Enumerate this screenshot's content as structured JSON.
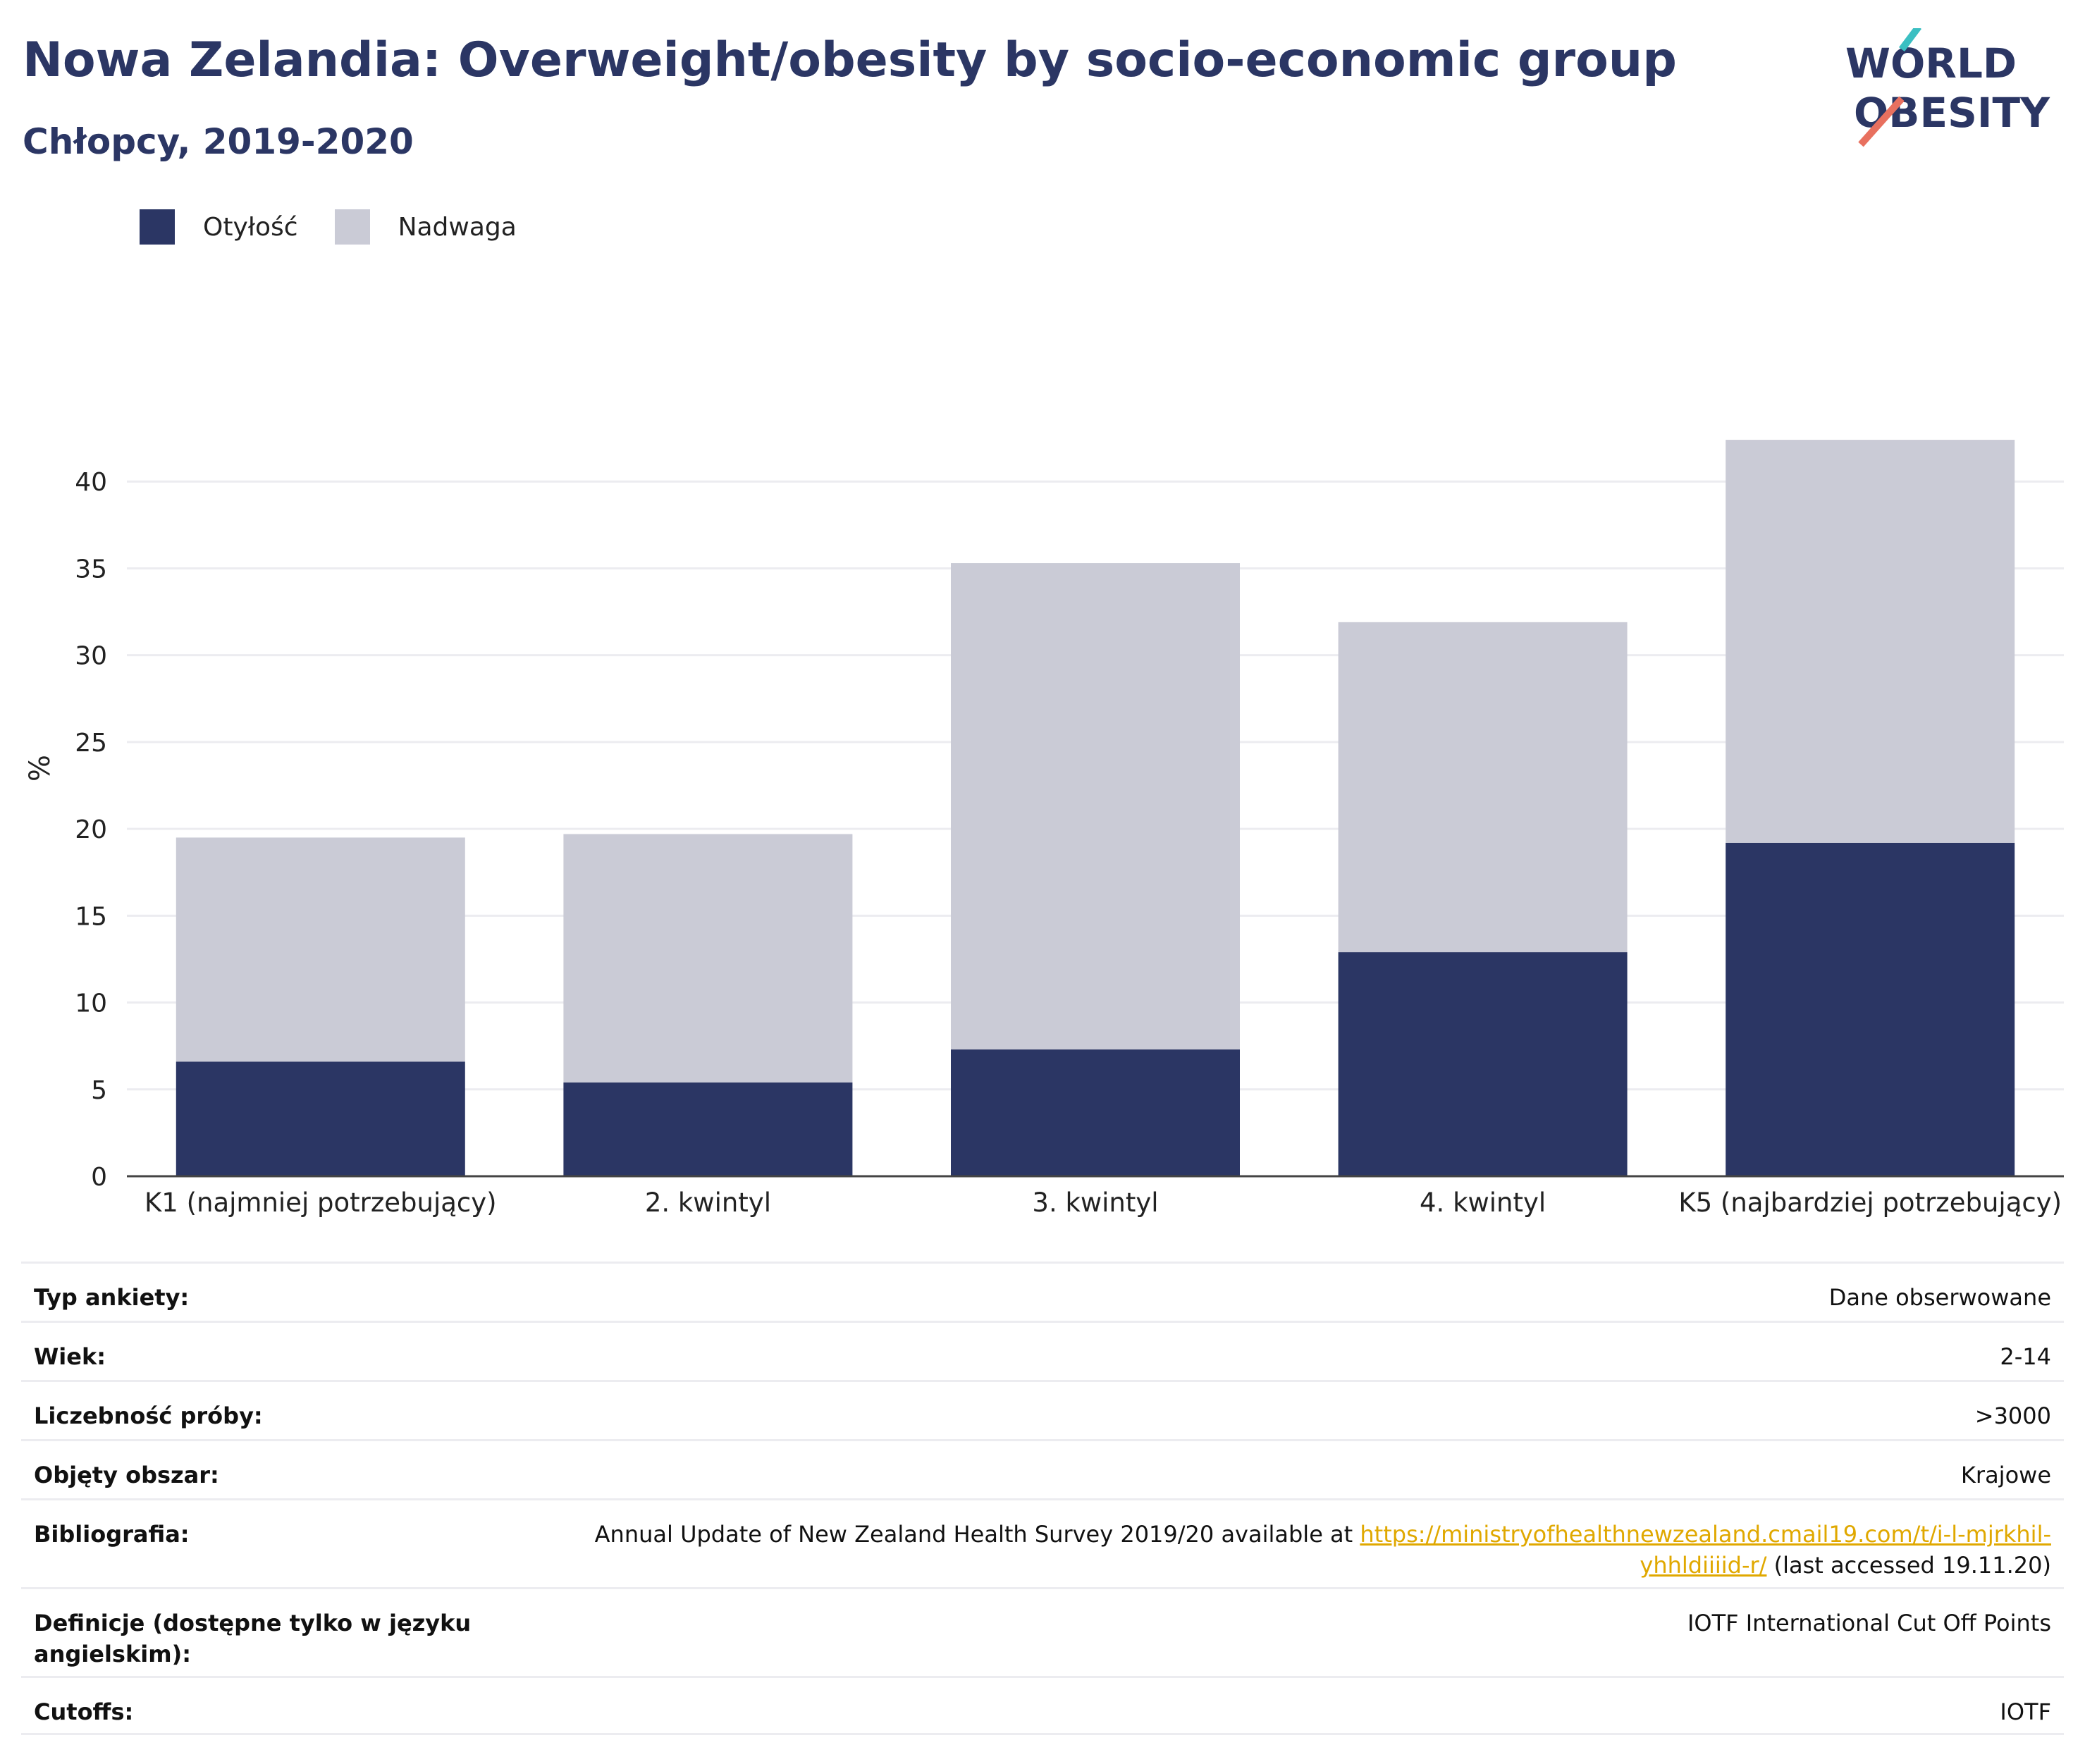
{
  "header": {
    "title": "Nowa Zelandia: Overweight/obesity by socio-economic group",
    "subtitle": "Chłopcy, 2019-2020"
  },
  "logo": {
    "line1": "WORLD",
    "line2": "OBESITY",
    "icon": "world-obesity-logo"
  },
  "legend": [
    {
      "label": "Otyłość",
      "color": "#2b3664"
    },
    {
      "label": "Nadwaga",
      "color": "#cacbd6"
    }
  ],
  "chart_data": {
    "type": "bar",
    "stacked": true,
    "categories": [
      "K1 (najmniej potrzebujący)",
      "2. kwintyl",
      "3. kwintyl",
      "4. kwintyl",
      "K5 (najbardziej potrzebujący)"
    ],
    "series": [
      {
        "name": "Otyłość",
        "color": "#2b3664",
        "values": [
          6.6,
          5.4,
          7.3,
          12.9,
          19.2
        ]
      },
      {
        "name": "Nadwaga",
        "color": "#cacbd6",
        "values": [
          12.9,
          14.3,
          28.0,
          19.0,
          23.2
        ]
      }
    ],
    "ylabel": "%",
    "ylim": [
      0,
      45
    ],
    "yticks": [
      0,
      5,
      10,
      15,
      20,
      25,
      30,
      35,
      40
    ],
    "grid": true,
    "legend_position": "top-left"
  },
  "info": {
    "rows": [
      {
        "label": "Typ ankiety:",
        "value": "Dane obserwowane"
      },
      {
        "label": "Wiek:",
        "value": "2-14"
      },
      {
        "label": "Liczebność próby:",
        "value": ">3000"
      },
      {
        "label": "Objęty obszar:",
        "value": "Krajowe"
      },
      {
        "label": "Definicje (dostępne tylko w języku angielskim):",
        "value": "IOTF International Cut Off Points"
      },
      {
        "label": "Cutoffs:",
        "value": "IOTF"
      }
    ],
    "bibliography": {
      "label": "Bibliografia:",
      "text_before": "Annual Update of New Zealand Health Survey 2019/20 available at ",
      "link": "https://ministryofhealthnewzealand.cmail19.com/t/i-l-mjrkhil-yhhldiiiid-r/",
      "text_after": " (last accessed 19.11.20)"
    }
  }
}
